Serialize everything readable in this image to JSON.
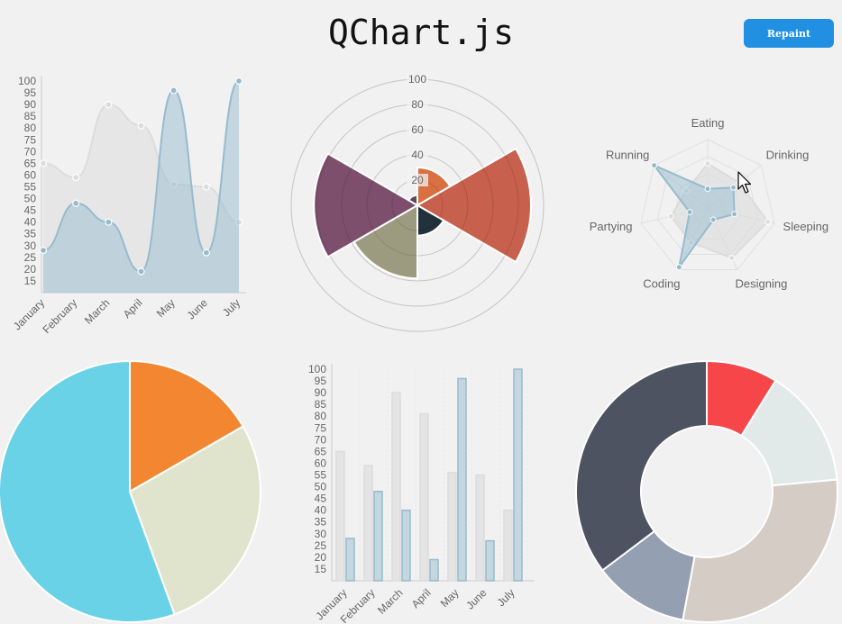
{
  "page": {
    "title": "QChart.js"
  },
  "toolbar": {
    "repaint_label": "Repaint"
  },
  "colors": {
    "accent": "#2190e3",
    "grey_fill": "#dcdcdc",
    "grey_stroke": "#cccccc",
    "blue_fill": "#b9ccdd",
    "blue_stroke": "#97bbcd"
  },
  "chart_data": [
    {
      "type": "area",
      "categories": [
        "January",
        "February",
        "March",
        "April",
        "May",
        "June",
        "July"
      ],
      "series": [
        {
          "values": [
            65,
            59,
            90,
            81,
            56,
            55,
            40
          ]
        },
        {
          "values": [
            28,
            48,
            40,
            19,
            96,
            27,
            100
          ]
        }
      ],
      "yticks": [
        15,
        20,
        25,
        30,
        35,
        40,
        45,
        50,
        55,
        60,
        65,
        70,
        75,
        80,
        85,
        90,
        95,
        100
      ],
      "ylim": [
        10,
        100
      ]
    },
    {
      "type": "polar-area",
      "values": [
        30,
        90,
        24,
        58,
        82,
        8
      ],
      "colors": [
        "#d97041",
        "#c7604c",
        "#21323d",
        "#9d9b7f",
        "#7d4f6d",
        "#584a5e"
      ],
      "rticks": [
        20,
        40,
        60,
        80,
        100
      ],
      "rlim": [
        0,
        100
      ]
    },
    {
      "type": "radar",
      "labels": [
        "Eating",
        "Drinking",
        "Sleeping",
        "Designing",
        "Coding",
        "Partying",
        "Running"
      ],
      "series": [
        {
          "values": [
            65,
            59,
            90,
            81,
            56,
            55,
            40
          ]
        },
        {
          "values": [
            28,
            48,
            40,
            19,
            96,
            27,
            100
          ]
        }
      ],
      "rlim": [
        0,
        100
      ]
    },
    {
      "type": "pie",
      "values": [
        30,
        50,
        100
      ],
      "colors": [
        "#f38630",
        "#e0e4cc",
        "#69d2e7"
      ]
    },
    {
      "type": "bar",
      "categories": [
        "January",
        "February",
        "March",
        "April",
        "May",
        "June",
        "July"
      ],
      "series": [
        {
          "values": [
            65,
            59,
            90,
            81,
            56,
            55,
            40
          ]
        },
        {
          "values": [
            28,
            48,
            40,
            19,
            96,
            27,
            100
          ]
        }
      ],
      "yticks": [
        15,
        20,
        25,
        30,
        35,
        40,
        45,
        50,
        55,
        60,
        65,
        70,
        75,
        80,
        85,
        90,
        95,
        100
      ],
      "ylim": [
        10,
        100
      ]
    },
    {
      "type": "doughnut",
      "values": [
        30,
        50,
        100,
        40,
        120
      ],
      "colors": [
        "#f7464a",
        "#e2eae9",
        "#d4ccc5",
        "#949fb1",
        "#4d5360"
      ]
    }
  ]
}
